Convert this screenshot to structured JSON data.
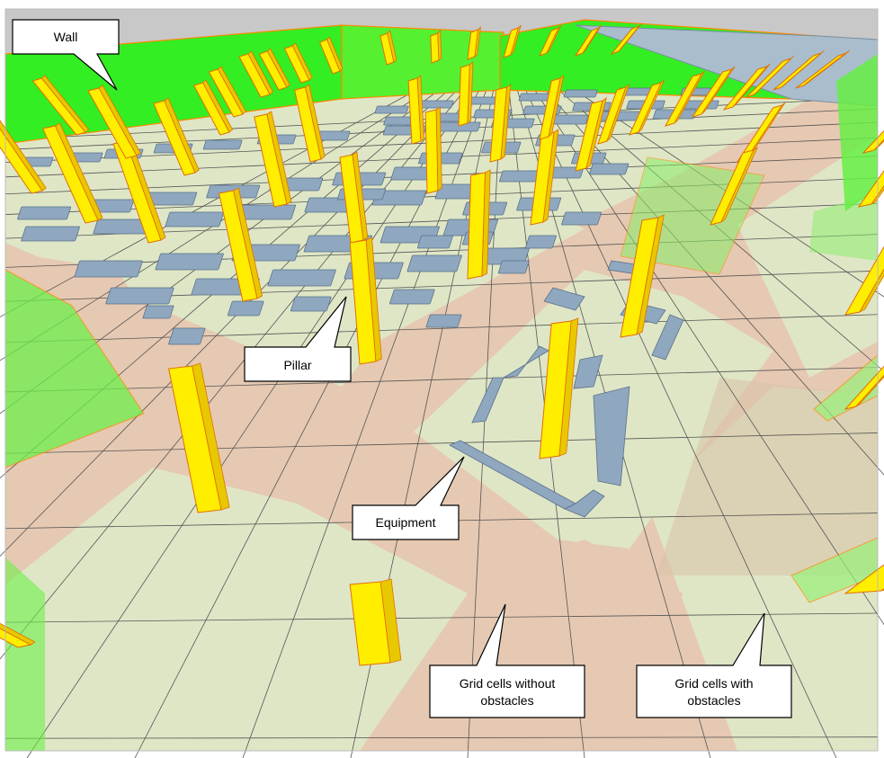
{
  "colors": {
    "background": "#ffffff",
    "sky": "#c8c8c8",
    "floor_free": "#dfe6c6",
    "floor_obstacle": "#e6c9b2",
    "wall": "#33ee22",
    "wall_edge": "#ff8800",
    "pillar": "#ffee00",
    "pillar_edge": "#e07000",
    "equipment": "#8fa8c0",
    "grid_line": "#555555"
  },
  "callouts": {
    "wall": "Wall",
    "pillar": "Pillar",
    "equipment": "Equipment",
    "free_cells": [
      "Grid cells without",
      "obstacles"
    ],
    "obstacle_cells": [
      "Grid cells with",
      "obstacles"
    ]
  },
  "legend_items": [
    "wall",
    "pillar",
    "equipment",
    "grid-cells-without-obstacles",
    "grid-cells-with-obstacles"
  ]
}
